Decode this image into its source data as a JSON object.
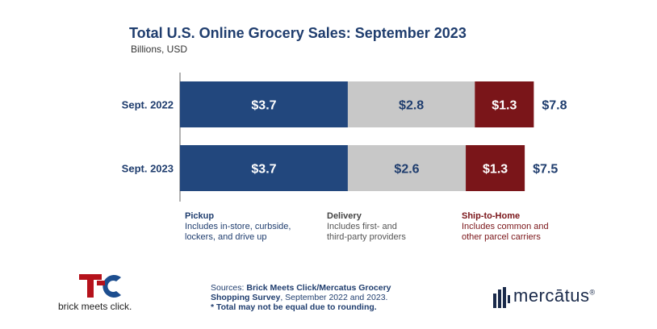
{
  "chart_data": {
    "type": "bar",
    "orientation": "horizontal",
    "stacked": true,
    "title": "Total U.S. Online Grocery Sales: September 2023",
    "subtitle": "Billions, USD",
    "categories": [
      "Sept. 2022",
      "Sept. 2023"
    ],
    "series": [
      {
        "name": "Pickup",
        "values": [
          3.7,
          3.7
        ],
        "labels": [
          "$3.7",
          "$3.7"
        ],
        "color": "#22477d"
      },
      {
        "name": "Delivery",
        "values": [
          2.8,
          2.6
        ],
        "labels": [
          "$2.8",
          "$2.6"
        ],
        "color": "#c8c8c8"
      },
      {
        "name": "Ship-to-Home",
        "values": [
          1.3,
          1.3
        ],
        "labels": [
          "$1.3",
          "$1.3"
        ],
        "color": "#7a1519"
      }
    ],
    "totals": [
      7.8,
      7.5
    ],
    "total_labels": [
      "$7.8",
      "$7.5"
    ],
    "xlim": [
      0,
      10
    ],
    "grid": false,
    "legend": {
      "placement": "bottom",
      "items": [
        {
          "title": "Pickup",
          "desc": [
            "Includes in-store, curbside,",
            "lockers, and drive up"
          ]
        },
        {
          "title": "Delivery",
          "desc": [
            "Includes first- and",
            "third-party providers"
          ]
        },
        {
          "title": "Ship-to-Home",
          "desc": [
            "Includes common and",
            "other parcel carriers"
          ]
        }
      ]
    }
  },
  "footer": {
    "sources_label": "Sources:",
    "sources_text": "Brick Meets Click/Mercatus Grocery",
    "sources_line2_bold": "Shopping Survey",
    "sources_line2_rest": ", September 2022 and 2023.",
    "note": "* Total may not be equal due to rounding."
  },
  "logos": {
    "brick_meets_click": "brick meets click.",
    "mercatus": "mercātus",
    "mercatus_mark": "®"
  }
}
